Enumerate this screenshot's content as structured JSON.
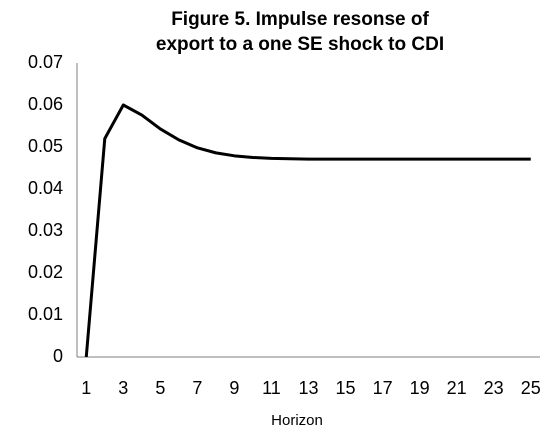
{
  "chart_data": {
    "type": "line",
    "title": [
      "Figure 5. Impulse resonse of",
      "export to a one SE shock to CDI"
    ],
    "x_label": "Horizon",
    "categories": [
      "1",
      null,
      "3",
      null,
      "5",
      null,
      "7",
      null,
      "9",
      null,
      "11",
      null,
      "13",
      null,
      "15",
      null,
      "17",
      null,
      "19",
      null,
      "21",
      null,
      "23",
      null,
      "25"
    ],
    "series": [
      {
        "color": "#000000",
        "values": [
          0,
          0.052,
          0.06,
          0.0576,
          0.0543,
          0.0517,
          0.0498,
          0.0486,
          0.0479,
          0.0475,
          0.0473,
          0.0472,
          0.0471,
          0.0471,
          0.0471,
          0.0471,
          0.0471,
          0.0471,
          0.0471,
          0.0471,
          0.0471,
          0.0471,
          0.0471,
          0.0471,
          0.0471
        ]
      }
    ],
    "ylim": [
      0,
      0.07
    ],
    "yticks": [
      0,
      0.01,
      0.02,
      0.03,
      0.04,
      0.05,
      0.06,
      0.07
    ],
    "grid": false
  }
}
